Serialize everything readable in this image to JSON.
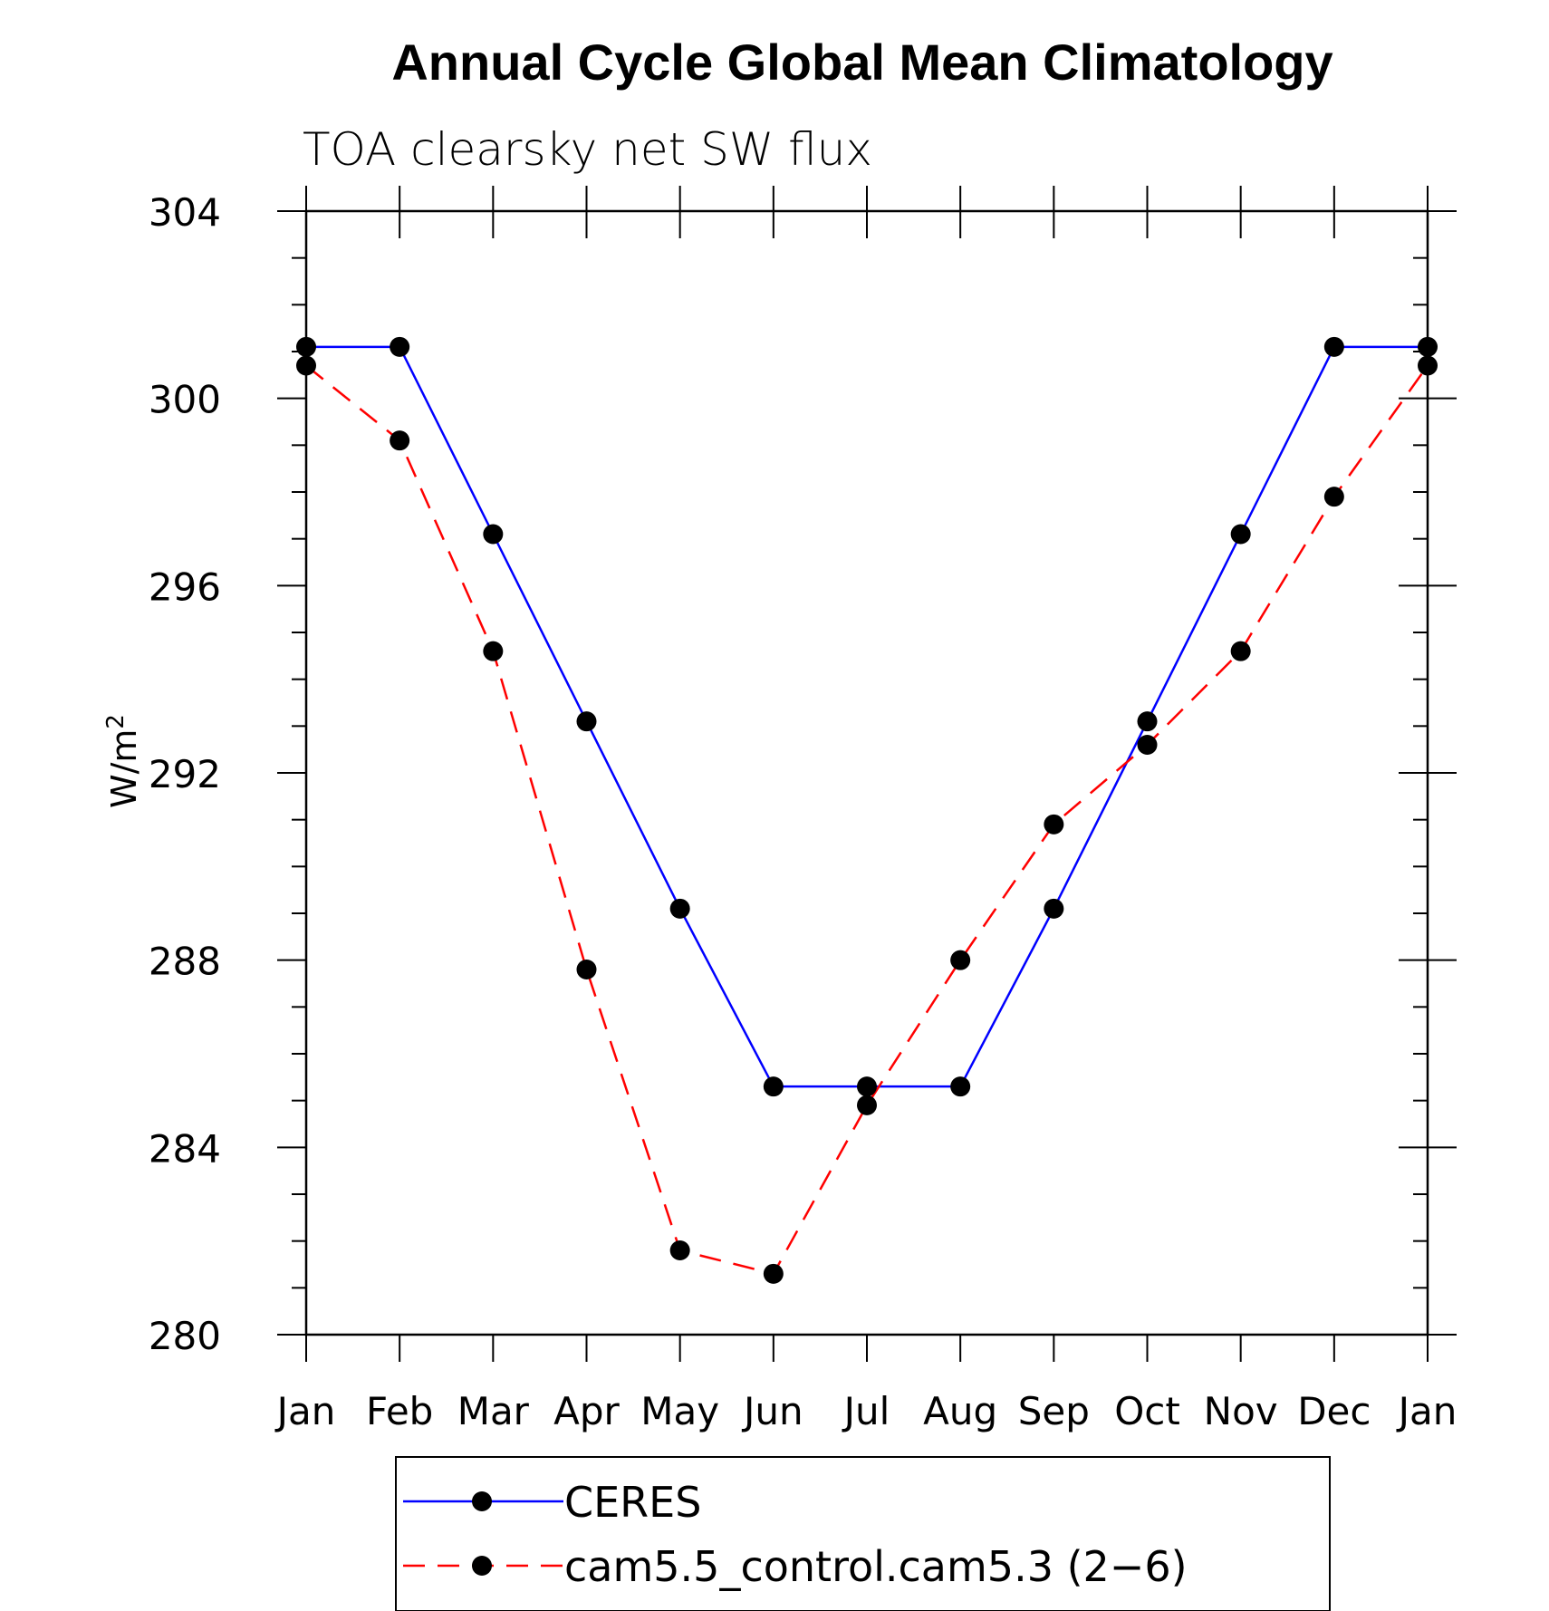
{
  "chart_data": {
    "type": "line",
    "title": "Annual Cycle Global Mean Climatology",
    "subtitle": "TOA clearsky net SW flux",
    "ylabel": "W/m",
    "ylabel_superscript": "2",
    "xlabel": "",
    "categories": [
      "Jan",
      "Feb",
      "Mar",
      "Apr",
      "May",
      "Jun",
      "Jul",
      "Aug",
      "Sep",
      "Oct",
      "Nov",
      "Dec",
      "Jan"
    ],
    "ylim": [
      280,
      304
    ],
    "yticks": [
      280,
      284,
      288,
      292,
      296,
      300,
      304
    ],
    "grid": false,
    "legend_position": "bottom",
    "series": [
      {
        "name": "CERES",
        "color": "#0000ff",
        "dash": "solid",
        "marker": "circle",
        "values": [
          301.1,
          301.1,
          297.1,
          293.1,
          289.1,
          285.3,
          285.3,
          285.3,
          289.1,
          293.1,
          297.1,
          301.1,
          301.1
        ]
      },
      {
        "name": "cam5.5_control.cam5.3 (2−6)",
        "color": "#ff0000",
        "dash": "dashed",
        "marker": "circle",
        "values": [
          300.7,
          299.1,
          294.6,
          287.8,
          281.8,
          281.3,
          284.9,
          288.0,
          290.9,
          292.6,
          294.6,
          297.9,
          300.7
        ]
      }
    ]
  }
}
